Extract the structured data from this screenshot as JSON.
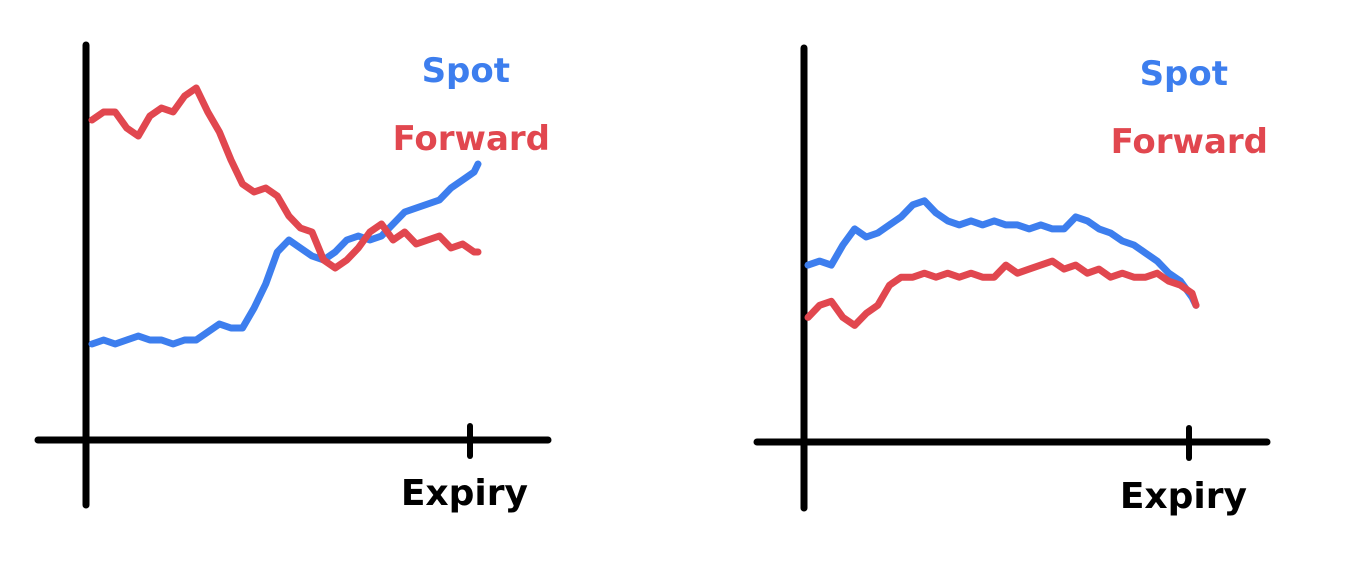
{
  "colors": {
    "spot": "#3D7EEE",
    "forward": "#E1474F",
    "axis": "#000000"
  },
  "chart_data": [
    {
      "type": "line",
      "xlabel": "Expiry",
      "ylabel": "",
      "title": "",
      "xlim": [
        0,
        1
      ],
      "ylim": [
        0,
        1
      ],
      "x_ticks": [
        {
          "x": 1.0,
          "label": "Expiry"
        }
      ],
      "legend": {
        "placement": "top-right",
        "entries": [
          "Spot",
          "Forward"
        ]
      },
      "series": [
        {
          "name": "Spot",
          "color": "#3D7EEE",
          "x": [
            0.0,
            0.03,
            0.06,
            0.09,
            0.12,
            0.15,
            0.18,
            0.21,
            0.24,
            0.27,
            0.3,
            0.33,
            0.36,
            0.39,
            0.42,
            0.45,
            0.48,
            0.51,
            0.54,
            0.57,
            0.6,
            0.63,
            0.66,
            0.69,
            0.72,
            0.75,
            0.78,
            0.81,
            0.84,
            0.87,
            0.9,
            0.93,
            0.96,
            0.99,
            1.0
          ],
          "values": [
            0.24,
            0.25,
            0.24,
            0.25,
            0.26,
            0.25,
            0.25,
            0.24,
            0.25,
            0.25,
            0.27,
            0.29,
            0.28,
            0.28,
            0.33,
            0.39,
            0.47,
            0.5,
            0.48,
            0.46,
            0.45,
            0.47,
            0.5,
            0.51,
            0.5,
            0.51,
            0.54,
            0.57,
            0.58,
            0.59,
            0.6,
            0.63,
            0.65,
            0.67,
            0.69
          ]
        },
        {
          "name": "Forward",
          "color": "#E1474F",
          "x": [
            0.0,
            0.03,
            0.06,
            0.09,
            0.12,
            0.15,
            0.18,
            0.21,
            0.24,
            0.27,
            0.3,
            0.33,
            0.36,
            0.39,
            0.42,
            0.45,
            0.48,
            0.51,
            0.54,
            0.57,
            0.6,
            0.63,
            0.66,
            0.69,
            0.72,
            0.75,
            0.78,
            0.81,
            0.84,
            0.87,
            0.9,
            0.93,
            0.96,
            0.99,
            1.0
          ],
          "values": [
            0.8,
            0.82,
            0.82,
            0.78,
            0.76,
            0.81,
            0.83,
            0.82,
            0.86,
            0.88,
            0.82,
            0.77,
            0.7,
            0.64,
            0.62,
            0.63,
            0.61,
            0.56,
            0.53,
            0.52,
            0.45,
            0.43,
            0.45,
            0.48,
            0.52,
            0.54,
            0.5,
            0.52,
            0.49,
            0.5,
            0.51,
            0.48,
            0.49,
            0.47,
            0.47
          ]
        }
      ]
    },
    {
      "type": "line",
      "xlabel": "Expiry",
      "ylabel": "",
      "title": "",
      "xlim": [
        0,
        1
      ],
      "ylim": [
        0,
        1
      ],
      "x_ticks": [
        {
          "x": 1.0,
          "label": "Expiry"
        }
      ],
      "legend": {
        "placement": "top-right",
        "entries": [
          "Spot",
          "Forward"
        ]
      },
      "series": [
        {
          "name": "Spot",
          "color": "#3D7EEE",
          "x": [
            0.0,
            0.03,
            0.06,
            0.09,
            0.12,
            0.15,
            0.18,
            0.21,
            0.24,
            0.27,
            0.3,
            0.33,
            0.36,
            0.39,
            0.42,
            0.45,
            0.48,
            0.51,
            0.54,
            0.57,
            0.6,
            0.63,
            0.66,
            0.69,
            0.72,
            0.75,
            0.78,
            0.81,
            0.84,
            0.87,
            0.9,
            0.93,
            0.96,
            0.99,
            1.0
          ],
          "values": [
            0.44,
            0.45,
            0.44,
            0.49,
            0.53,
            0.51,
            0.52,
            0.54,
            0.56,
            0.59,
            0.6,
            0.57,
            0.55,
            0.54,
            0.55,
            0.54,
            0.55,
            0.54,
            0.54,
            0.53,
            0.54,
            0.53,
            0.53,
            0.56,
            0.55,
            0.53,
            0.52,
            0.5,
            0.49,
            0.47,
            0.45,
            0.42,
            0.4,
            0.36,
            0.34
          ]
        },
        {
          "name": "Forward",
          "color": "#E1474F",
          "x": [
            0.0,
            0.03,
            0.06,
            0.09,
            0.12,
            0.15,
            0.18,
            0.21,
            0.24,
            0.27,
            0.3,
            0.33,
            0.36,
            0.39,
            0.42,
            0.45,
            0.48,
            0.51,
            0.54,
            0.57,
            0.6,
            0.63,
            0.66,
            0.69,
            0.72,
            0.75,
            0.78,
            0.81,
            0.84,
            0.87,
            0.9,
            0.93,
            0.96,
            0.99,
            1.0
          ],
          "values": [
            0.31,
            0.34,
            0.35,
            0.31,
            0.29,
            0.32,
            0.34,
            0.39,
            0.41,
            0.41,
            0.42,
            0.41,
            0.42,
            0.41,
            0.42,
            0.41,
            0.41,
            0.44,
            0.42,
            0.43,
            0.44,
            0.45,
            0.43,
            0.44,
            0.42,
            0.43,
            0.41,
            0.42,
            0.41,
            0.41,
            0.42,
            0.4,
            0.39,
            0.37,
            0.34
          ]
        }
      ]
    }
  ]
}
